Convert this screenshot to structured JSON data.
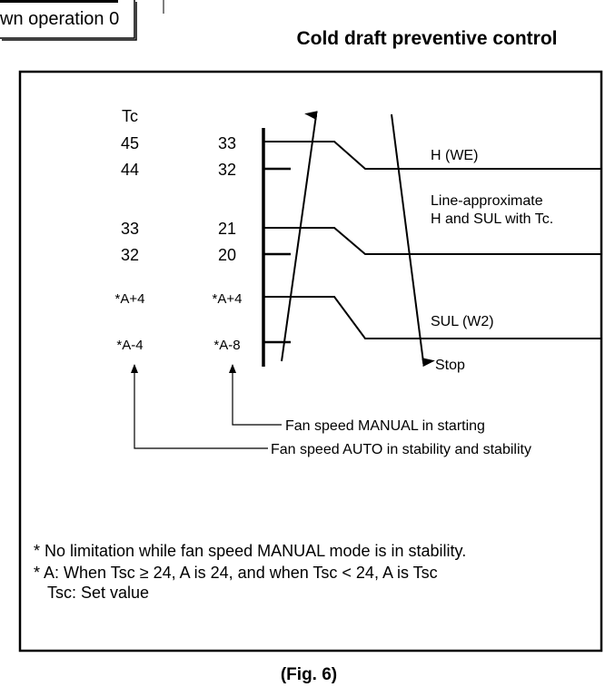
{
  "prev_box": {
    "line2": "wn operation 0"
  },
  "title": "Cold draft preventive control",
  "diagram": {
    "col1_header": "Tc",
    "col1": [
      "45",
      "44",
      "33",
      "32",
      "*A+4",
      "*A-4"
    ],
    "col2": [
      "33",
      "32",
      "21",
      "20",
      "*A+4",
      "*A-8"
    ],
    "h_label": "H (WE)",
    "approx_line1": "Line-approximate",
    "approx_line2": "H and SUL with Tc.",
    "sul_label": "SUL (W2)",
    "stop_label": "Stop",
    "manual_note": "Fan speed MANUAL in starting",
    "auto_note": "Fan speed AUTO in stability and stability"
  },
  "notes": [
    "* No limitation while fan speed MANUAL mode is in stability.",
    "* A: When Tsc ≥ 24, A is 24, and when Tsc < 24, A is Tsc",
    "Tsc: Set value"
  ],
  "caption": "(Fig. 6)"
}
